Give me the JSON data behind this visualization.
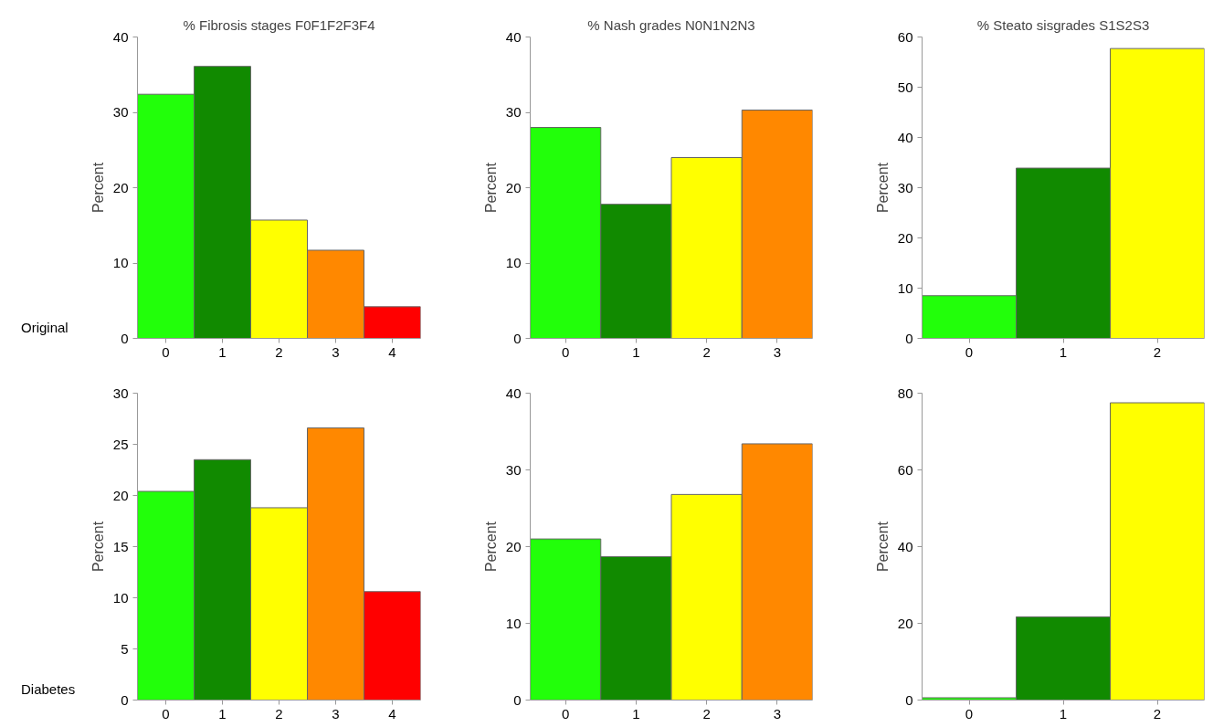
{
  "chart_data": [
    {
      "type": "bar",
      "title": "% Fibrosis stages F0F1F2F3F4",
      "ylabel": "Percent",
      "categories": [
        "0",
        "1",
        "2",
        "3",
        "4"
      ],
      "values": [
        32.4,
        36.1,
        15.7,
        11.7,
        4.2
      ],
      "colors": [
        "#22ff0a",
        "#118a00",
        "#ffff00",
        "#ff8800",
        "#ff0000"
      ],
      "ylim": [
        0,
        40
      ],
      "yticks": [
        0,
        10,
        20,
        30,
        40
      ],
      "annotations": [
        "Original"
      ]
    },
    {
      "type": "bar",
      "title": "% Nash grades N0N1N2N3",
      "ylabel": "Percent",
      "categories": [
        "0",
        "1",
        "2",
        "3"
      ],
      "values": [
        28.0,
        17.8,
        24.0,
        30.3
      ],
      "colors": [
        "#22ff0a",
        "#118a00",
        "#ffff00",
        "#ff8800"
      ],
      "ylim": [
        0,
        40
      ],
      "yticks": [
        0,
        10,
        20,
        30,
        40
      ]
    },
    {
      "type": "bar",
      "title": "% Steato sisgrades S1S2S3",
      "ylabel": "Percent",
      "categories": [
        "0",
        "1",
        "2"
      ],
      "values": [
        8.5,
        33.9,
        57.7
      ],
      "colors": [
        "#22ff0a",
        "#118a00",
        "#ffff00"
      ],
      "ylim": [
        0,
        60
      ],
      "yticks": [
        0,
        10,
        20,
        30,
        40,
        50,
        60
      ]
    },
    {
      "type": "bar",
      "ylabel": "Percent",
      "categories": [
        "0",
        "1",
        "2",
        "3",
        "4"
      ],
      "values": [
        20.4,
        23.5,
        18.8,
        26.6,
        10.6
      ],
      "colors": [
        "#22ff0a",
        "#118a00",
        "#ffff00",
        "#ff8800",
        "#ff0000"
      ],
      "ylim": [
        0,
        30
      ],
      "yticks": [
        0,
        5,
        10,
        15,
        20,
        25,
        30
      ],
      "annotations": [
        "Diabetes"
      ]
    },
    {
      "type": "bar",
      "ylabel": "Percent",
      "categories": [
        "0",
        "1",
        "2",
        "3"
      ],
      "values": [
        21.0,
        18.7,
        26.8,
        33.4
      ],
      "colors": [
        "#22ff0a",
        "#118a00",
        "#ffff00",
        "#ff8800"
      ],
      "ylim": [
        0,
        40
      ],
      "yticks": [
        0,
        10,
        20,
        30,
        40
      ]
    },
    {
      "type": "bar",
      "ylabel": "Percent",
      "categories": [
        "0",
        "1",
        "2"
      ],
      "values": [
        0.6,
        21.7,
        77.5
      ],
      "colors": [
        "#22ff0a",
        "#118a00",
        "#ffff00"
      ],
      "ylim": [
        0,
        80
      ],
      "yticks": [
        0,
        20,
        40,
        60,
        80
      ]
    }
  ]
}
